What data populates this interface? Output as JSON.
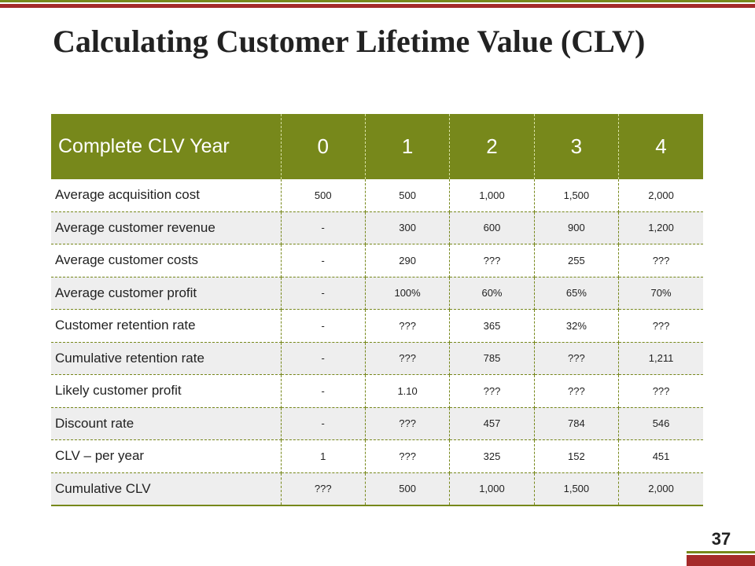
{
  "title": "Calculating Customer Lifetime Value (CLV)",
  "table": {
    "header_label": "Complete CLV Year",
    "years": [
      "0",
      "1",
      "2",
      "3",
      "4"
    ],
    "rows": [
      {
        "label": "Average acquisition cost",
        "values": [
          "500",
          "500",
          "1,000",
          "1,500",
          "2,000"
        ]
      },
      {
        "label": "Average customer revenue",
        "values": [
          "-",
          "300",
          "600",
          "900",
          "1,200"
        ]
      },
      {
        "label": "Average customer costs",
        "values": [
          "-",
          "290",
          "???",
          "255",
          "???"
        ]
      },
      {
        "label": "Average customer profit",
        "values": [
          "-",
          "100%",
          "60%",
          "65%",
          "70%"
        ]
      },
      {
        "label": "Customer retention rate",
        "values": [
          "-",
          "???",
          "365",
          "32%",
          "???"
        ]
      },
      {
        "label": "Cumulative retention rate",
        "values": [
          "-",
          "???",
          "785",
          "???",
          "1,211"
        ]
      },
      {
        "label": "Likely customer profit",
        "values": [
          "-",
          "1.10",
          "???",
          "???",
          "???"
        ]
      },
      {
        "label": "Discount rate",
        "values": [
          "-",
          "???",
          "457",
          "784",
          "546"
        ]
      },
      {
        "label": "CLV – per year",
        "values": [
          "1",
          "???",
          "325",
          "152",
          "451"
        ]
      },
      {
        "label": "Cumulative CLV",
        "values": [
          "???",
          "500",
          "1,000",
          "1,500",
          "2,000"
        ]
      }
    ]
  },
  "page_number": "37",
  "colors": {
    "accent_olive": "#77881b",
    "accent_red": "#a52a2a",
    "row_alt": "#eeeeee"
  }
}
